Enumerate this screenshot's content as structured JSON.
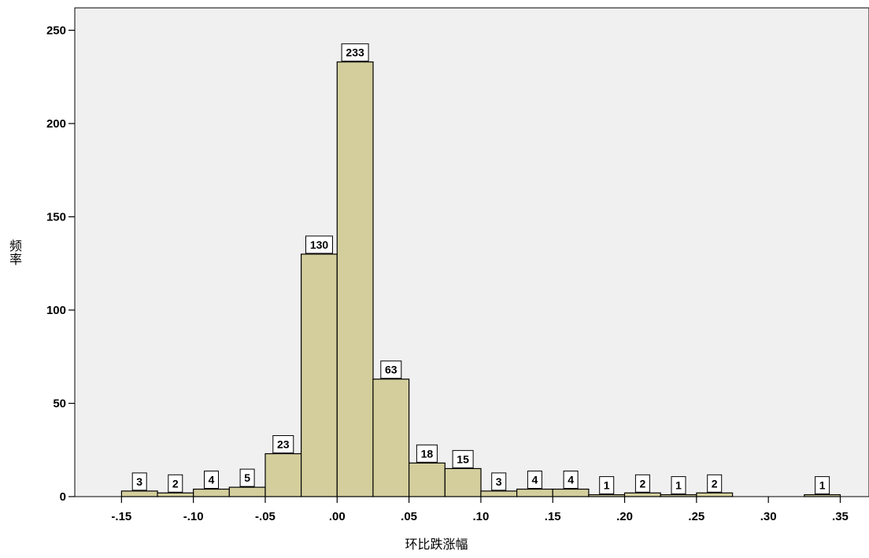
{
  "chart_data": {
    "type": "bar",
    "title": "",
    "xlabel": "环比跌涨幅",
    "ylabel": "频率",
    "bin_width": 0.025,
    "bins": [
      {
        "center": -0.1375,
        "value": 3
      },
      {
        "center": -0.1125,
        "value": 2
      },
      {
        "center": -0.0875,
        "value": 4
      },
      {
        "center": -0.0625,
        "value": 5
      },
      {
        "center": -0.0375,
        "value": 23
      },
      {
        "center": -0.0125,
        "value": 130
      },
      {
        "center": 0.0125,
        "value": 233
      },
      {
        "center": 0.0375,
        "value": 63
      },
      {
        "center": 0.0625,
        "value": 18
      },
      {
        "center": 0.0875,
        "value": 15
      },
      {
        "center": 0.1125,
        "value": 3
      },
      {
        "center": 0.1375,
        "value": 4
      },
      {
        "center": 0.1625,
        "value": 4
      },
      {
        "center": 0.1875,
        "value": 1
      },
      {
        "center": 0.2125,
        "value": 2
      },
      {
        "center": 0.2375,
        "value": 1
      },
      {
        "center": 0.2625,
        "value": 2
      },
      {
        "center": 0.3375,
        "value": 1
      }
    ],
    "xticks": [
      {
        "value": -0.15,
        "label": "-.15"
      },
      {
        "value": -0.1,
        "label": "-.10"
      },
      {
        "value": -0.05,
        "label": "-.05"
      },
      {
        "value": 0.0,
        "label": ".00"
      },
      {
        "value": 0.05,
        "label": ".05"
      },
      {
        "value": 0.1,
        "label": ".10"
      },
      {
        "value": 0.15,
        "label": ".15"
      },
      {
        "value": 0.2,
        "label": ".20"
      },
      {
        "value": 0.25,
        "label": ".25"
      },
      {
        "value": 0.3,
        "label": ".30"
      },
      {
        "value": 0.35,
        "label": ".35"
      }
    ],
    "yticks": [
      {
        "value": 0,
        "label": "0"
      },
      {
        "value": 50,
        "label": "50"
      },
      {
        "value": 100,
        "label": "100"
      },
      {
        "value": 150,
        "label": "150"
      },
      {
        "value": 200,
        "label": "200"
      },
      {
        "value": 250,
        "label": "250"
      }
    ],
    "xlim": [
      -0.1825,
      0.37
    ],
    "ylim": [
      0,
      262
    ],
    "grid": false,
    "colors": {
      "plot_background": "#f0f0f0",
      "bar_fill": "#d3ce9c",
      "bar_stroke": "#000000",
      "label_box_fill": "#ffffff"
    }
  }
}
